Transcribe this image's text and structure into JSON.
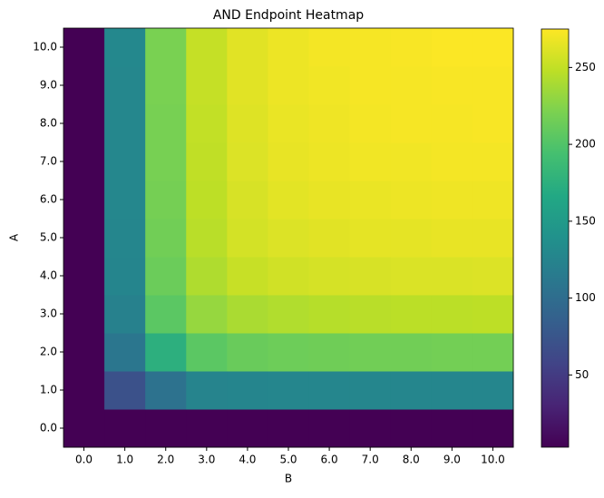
{
  "chart_data": {
    "type": "heatmap",
    "title": "AND Endpoint Heatmap",
    "xlabel": "B",
    "ylabel": "A",
    "x_categories": [
      "0.0",
      "1.0",
      "2.0",
      "3.0",
      "4.0",
      "5.0",
      "6.0",
      "7.0",
      "8.0",
      "9.0",
      "10.0"
    ],
    "y_categories": [
      "0.0",
      "1.0",
      "2.0",
      "3.0",
      "4.0",
      "5.0",
      "6.0",
      "7.0",
      "8.0",
      "9.0",
      "10.0"
    ],
    "colormap": "viridis",
    "z": [
      [
        3,
        3,
        3,
        3,
        3,
        3,
        3,
        3,
        3,
        3,
        3
      ],
      [
        3,
        70,
        105,
        125,
        126,
        127,
        127,
        127,
        127,
        127,
        127
      ],
      [
        3,
        110,
        175,
        205,
        212,
        214,
        215,
        216,
        216,
        217,
        217
      ],
      [
        3,
        122,
        205,
        232,
        240,
        243,
        245,
        246,
        247,
        247,
        248
      ],
      [
        3,
        126,
        213,
        242,
        252,
        256,
        258,
        259,
        260,
        260,
        261
      ],
      [
        3,
        127,
        216,
        246,
        257,
        261,
        263,
        265,
        265,
        266,
        266
      ],
      [
        3,
        128,
        218,
        248,
        259,
        264,
        266,
        267,
        268,
        269,
        269
      ],
      [
        3,
        128,
        219,
        249,
        261,
        266,
        268,
        270,
        270,
        271,
        271
      ],
      [
        3,
        128,
        219,
        250,
        262,
        267,
        269,
        271,
        272,
        272,
        273
      ],
      [
        3,
        128,
        220,
        251,
        263,
        268,
        270,
        272,
        272,
        273,
        273
      ],
      [
        3,
        129,
        220,
        251,
        263,
        268,
        271,
        272,
        273,
        274,
        274
      ]
    ],
    "clim": [
      3,
      275
    ],
    "cticks": [
      50,
      100,
      150,
      200,
      250
    ]
  }
}
